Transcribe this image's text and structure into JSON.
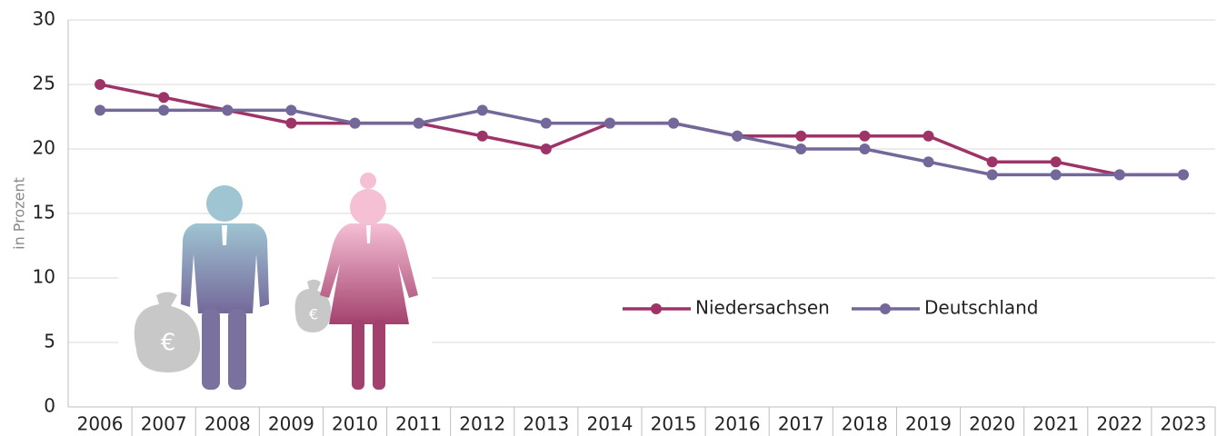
{
  "chart_data": {
    "type": "line",
    "y_label": "in Prozent",
    "categories": [
      "2006",
      "2007",
      "2008",
      "2009",
      "2010",
      "2011",
      "2012",
      "2013",
      "2014",
      "2015",
      "2016",
      "2017",
      "2018",
      "2019",
      "2020",
      "2021",
      "2022",
      "2023"
    ],
    "series": [
      {
        "name": "Niedersachsen",
        "color": "#9e3368",
        "values": [
          25,
          24,
          23,
          22,
          22,
          22,
          21,
          20,
          22,
          22,
          21,
          21,
          21,
          21,
          19,
          19,
          18,
          18
        ]
      },
      {
        "name": "Deutschland",
        "color": "#74689a",
        "values": [
          23,
          23,
          23,
          23,
          22,
          22,
          23,
          22,
          22,
          22,
          21,
          20,
          20,
          19,
          18,
          18,
          18,
          18
        ]
      }
    ],
    "ylim": [
      0,
      30
    ],
    "yticks": [
      0,
      5,
      10,
      15,
      20,
      25,
      30
    ],
    "grid": true
  }
}
